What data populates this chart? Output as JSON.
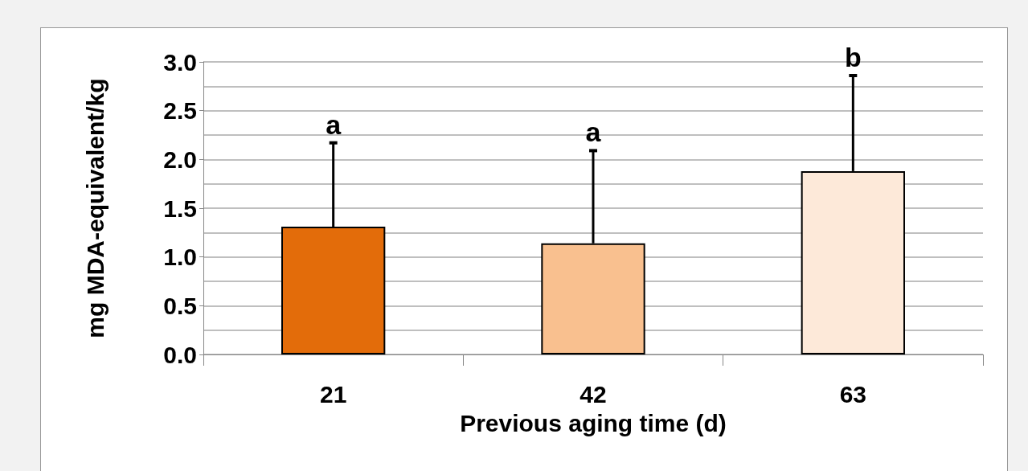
{
  "chart_data": {
    "type": "bar",
    "xlabel": "Previous aging time (d)",
    "ylabel": "mg MDA-equivalent/kg",
    "categories": [
      "21",
      "42",
      "63"
    ],
    "values": [
      1.31,
      1.14,
      1.88
    ],
    "colors": [
      "#e36c0a",
      "#f9c08f",
      "#fde9d9"
    ],
    "errors": [
      [
        1.31,
        2.17
      ],
      [
        1.14,
        2.09
      ],
      [
        1.88,
        2.86
      ]
    ],
    "ylim": [
      0,
      3
    ],
    "yticks": [
      {
        "value": 0,
        "label": "0.0"
      },
      {
        "value": 0.25,
        "label": null
      },
      {
        "value": 0.5,
        "label": "0.5"
      },
      {
        "value": 0.75,
        "label": null
      },
      {
        "value": 1,
        "label": "1.0"
      },
      {
        "value": 1.25,
        "label": null
      },
      {
        "value": 1.5,
        "label": "1.5"
      },
      {
        "value": 1.75,
        "label": null
      },
      {
        "value": 2,
        "label": "2.0"
      },
      {
        "value": 2.25,
        "label": null
      },
      {
        "value": 2.5,
        "label": "2.5"
      },
      {
        "value": 2.75,
        "label": null
      },
      {
        "value": 3,
        "label": "3.0"
      }
    ],
    "grid": "y",
    "annotations": [
      {
        "text": "a",
        "x": "21",
        "y": 2.17
      },
      {
        "text": "a",
        "x": "42",
        "y": 2.09
      },
      {
        "text": "b",
        "x": "63",
        "y": 2.86
      }
    ]
  }
}
